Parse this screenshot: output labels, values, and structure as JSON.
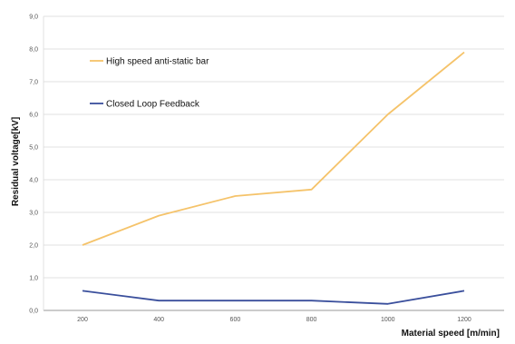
{
  "chart_data": {
    "type": "line",
    "title": "",
    "xlabel": "Material speed [m/min]",
    "ylabel": "Residual voltage[kV]",
    "categories": [
      "200",
      "400",
      "600",
      "800",
      "1000",
      "1200"
    ],
    "x": [
      200,
      400,
      600,
      800,
      1000,
      1200
    ],
    "ylim": [
      0,
      9
    ],
    "yticks": [
      0,
      1,
      2,
      3,
      4,
      5,
      6,
      7,
      8,
      9
    ],
    "ytick_labels": [
      "0,0",
      "1,0",
      "2,0",
      "3,0",
      "4,0",
      "5,0",
      "6,0",
      "7,0",
      "8,0",
      "9,0"
    ],
    "grid": true,
    "legend": "top-left inside plot",
    "series": [
      {
        "name": "High speed anti-static bar",
        "color": "#f5c36a",
        "values": [
          2.0,
          2.9,
          3.5,
          3.7,
          6.0,
          7.9
        ]
      },
      {
        "name": "Closed Loop Feedback",
        "color": "#3a4f9c",
        "values": [
          0.6,
          0.3,
          0.3,
          0.3,
          0.2,
          0.6
        ]
      }
    ]
  }
}
